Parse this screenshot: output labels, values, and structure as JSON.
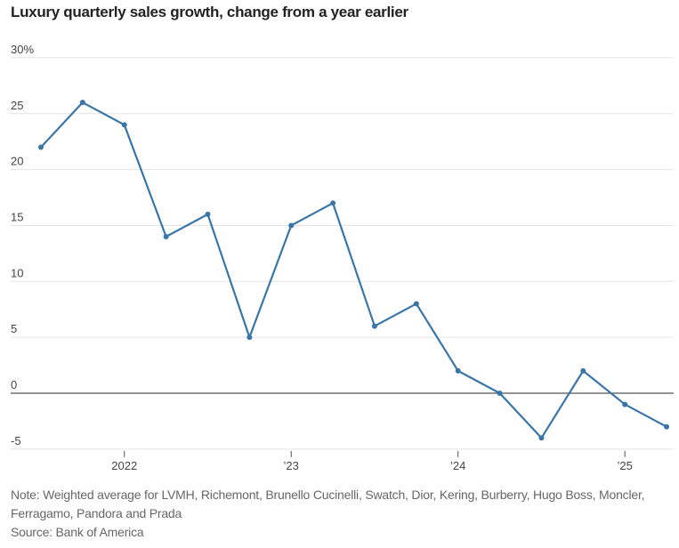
{
  "chart_data": {
    "type": "line",
    "title": "Luxury quarterly sales growth, change from a year earlier",
    "xlabel": "",
    "ylabel": "",
    "y_unit": "%",
    "ylim": [
      -5,
      30
    ],
    "y_ticks": [
      {
        "value": 30,
        "label": "30%"
      },
      {
        "value": 25,
        "label": "25"
      },
      {
        "value": 20,
        "label": "20"
      },
      {
        "value": 15,
        "label": "15"
      },
      {
        "value": 10,
        "label": "10"
      },
      {
        "value": 5,
        "label": "5"
      },
      {
        "value": 0,
        "label": "0"
      },
      {
        "value": -5,
        "label": "-5"
      }
    ],
    "x_ticks": [
      {
        "index": 2,
        "label": "2022"
      },
      {
        "index": 6,
        "label": "’23"
      },
      {
        "index": 10,
        "label": "’24"
      },
      {
        "index": 14,
        "label": "’25"
      }
    ],
    "grid": true,
    "series": [
      {
        "name": "Luxury sales growth",
        "color": "#3a75a8",
        "values": [
          22,
          26,
          24,
          14,
          16,
          5,
          15,
          17,
          6,
          8,
          2,
          0,
          -4,
          2,
          -1,
          -3
        ]
      }
    ]
  },
  "notes": {
    "note": "Note: Weighted average for LVMH, Richemont, Brunello Cucinelli, Swatch, Dior, Kering, Burberry, Hugo Boss, Moncler, Ferragamo, Pandora and Prada",
    "source": "Source: Bank of America"
  }
}
